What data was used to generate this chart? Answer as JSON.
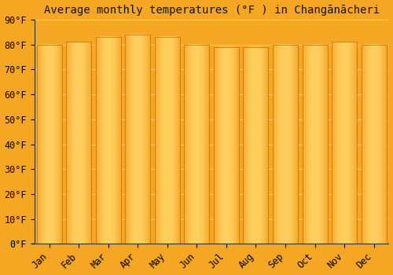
{
  "title": "Average monthly temperatures (°F ) in Changānācheri",
  "months": [
    "Jan",
    "Feb",
    "Mar",
    "Apr",
    "May",
    "Jun",
    "Jul",
    "Aug",
    "Sep",
    "Oct",
    "Nov",
    "Dec"
  ],
  "values": [
    80,
    81,
    83,
    84,
    83,
    80,
    79,
    79,
    80,
    80,
    81,
    80
  ],
  "ylim": [
    0,
    90
  ],
  "yticks": [
    0,
    10,
    20,
    30,
    40,
    50,
    60,
    70,
    80,
    90
  ],
  "ytick_labels": [
    "0°F",
    "10°F",
    "20°F",
    "30°F",
    "40°F",
    "50°F",
    "60°F",
    "70°F",
    "80°F",
    "90°F"
  ],
  "bar_color_center": "#FFD060",
  "bar_color_edge": "#F0900A",
  "bar_edge_color": "#CC7700",
  "background_color": "#F5A623",
  "plot_bg_color": "#F5A623",
  "grid_color": "#FFCC88",
  "title_fontsize": 10,
  "tick_fontsize": 8.5,
  "bar_width": 0.85
}
